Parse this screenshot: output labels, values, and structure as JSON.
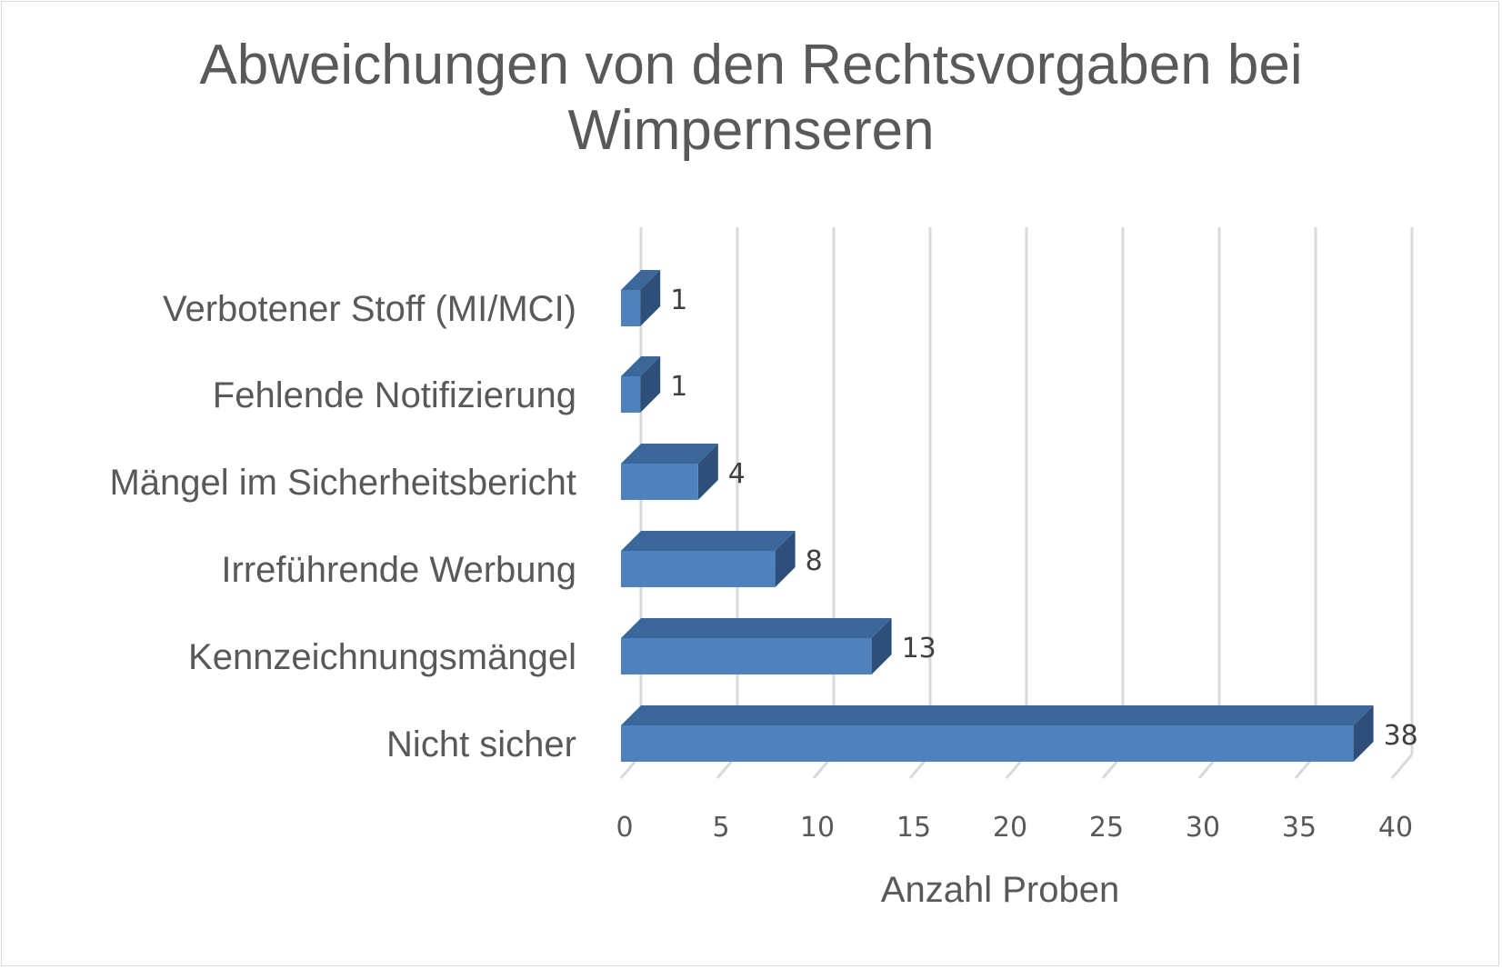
{
  "chart_data": {
    "type": "bar",
    "orientation": "horizontal",
    "style": "3d",
    "title": "Abweichungen von den Rechtsvorgaben bei\nWimpernseren",
    "xlabel": "Anzahl Proben",
    "ylabel": "",
    "xlim": [
      0,
      40
    ],
    "xticks": [
      "0",
      "5",
      "10",
      "15",
      "20",
      "25",
      "30",
      "35",
      "40"
    ],
    "grid": true,
    "legend": "none",
    "categories": [
      "Verbotener Stoff (MI/MCI)",
      "Fehlende Notifizierung",
      "Mängel im Sicherheitsbericht",
      "Irreführende Werbung",
      "Kennzeichnungsmängel",
      "Nicht sicher"
    ],
    "values": [
      1,
      1,
      4,
      8,
      13,
      38
    ],
    "data_labels": [
      "1",
      "1",
      "4",
      "8",
      "13",
      "38"
    ],
    "colors": {
      "bar_front": "#4f81bd",
      "bar_top": "#3c679a",
      "bar_side": "#2e4f79",
      "grid": "#d9d9d9",
      "text": "#595959"
    }
  }
}
